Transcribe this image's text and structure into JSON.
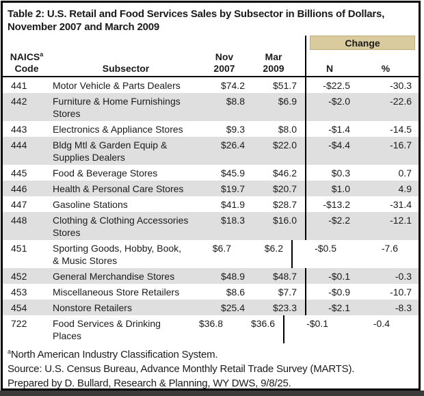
{
  "title": "Table 2: U.S. Retail and Food Services Sales by Subsector in Billions of Dollars, November 2007 and March 2009",
  "header": {
    "change_label": "Change",
    "col_naics_line1": "NAICS",
    "col_naics_sup": "a",
    "col_naics_line2": "Code",
    "col_subsector": "Subsector",
    "col_nov_line1": "Nov",
    "col_nov_line2": "2007",
    "col_mar_line1": "Mar",
    "col_mar_line2": "2009",
    "col_change_n": "N",
    "col_change_pct": "%"
  },
  "table": {
    "rows": [
      {
        "code": "441",
        "subsector": "Motor Vehicle & Parts Dealers",
        "nov": "$74.2",
        "mar": "$51.7",
        "n": "-$22.5",
        "pct": "-30.3"
      },
      {
        "code": "442",
        "subsector": "Furniture & Home Furnishings Stores",
        "nov": "$8.8",
        "mar": "$6.9",
        "n": "-$2.0",
        "pct": "-22.6"
      },
      {
        "code": "443",
        "subsector": "Electronics & Appliance Stores",
        "nov": "$9.3",
        "mar": "$8.0",
        "n": "-$1.4",
        "pct": "-14.5"
      },
      {
        "code": "444",
        "subsector": "Bldg Mtl & Garden Equip & Supplies Dealers",
        "nov": "$26.4",
        "mar": "$22.0",
        "n": "-$4.4",
        "pct": "-16.7"
      },
      {
        "code": "445",
        "subsector": "Food & Beverage Stores",
        "nov": "$45.9",
        "mar": "$46.2",
        "n": "$0.3",
        "pct": "0.7"
      },
      {
        "code": "446",
        "subsector": "Health & Personal Care Stores",
        "nov": "$19.7",
        "mar": "$20.7",
        "n": "$1.0",
        "pct": "4.9"
      },
      {
        "code": "447",
        "subsector": "Gasoline Stations",
        "nov": "$41.9",
        "mar": "$28.7",
        "n": "-$13.2",
        "pct": "-31.4"
      },
      {
        "code": "448",
        "subsector": "Clothing & Clothing Accessories Stores",
        "nov": "$18.3",
        "mar": "$16.0",
        "n": "-$2.2",
        "pct": "-12.1"
      },
      {
        "code": "451",
        "subsector": "Sporting Goods, Hobby, Book, & Music Stores",
        "nov": "$6.7",
        "mar": "$6.2",
        "n": "-$0.5",
        "pct": "-7.6"
      },
      {
        "code": "452",
        "subsector": "General Merchandise Stores",
        "nov": "$48.9",
        "mar": "$48.7",
        "n": "-$0.1",
        "pct": "-0.3"
      },
      {
        "code": "453",
        "subsector": "Miscellaneous Store Retailers",
        "nov": "$8.6",
        "mar": "$7.7",
        "n": "-$0.9",
        "pct": "-10.7"
      },
      {
        "code": "454",
        "subsector": "Nonstore Retailers",
        "nov": "$25.4",
        "mar": "$23.3",
        "n": "-$2.1",
        "pct": "-8.3"
      },
      {
        "code": "722",
        "subsector": "Food Services & Drinking Places",
        "nov": "$36.8",
        "mar": "$36.6",
        "n": "-$0.1",
        "pct": "-0.4"
      }
    ]
  },
  "footnotes": {
    "marker": "a",
    "line1": "North American Industry Classification System.",
    "line2": "Source: U.S. Census Bureau, Advance Monthly Retail Trade Survey (MARTS).",
    "line3": "Prepared by D. Bullard, Research & Planning, WY DWS, 9/8/25."
  },
  "colors": {
    "change_header_bg": "#d9cb9e",
    "row_stripe": "#dfdfdf",
    "table_border": "#000000",
    "bottom_bar": "#3a3a3a"
  }
}
